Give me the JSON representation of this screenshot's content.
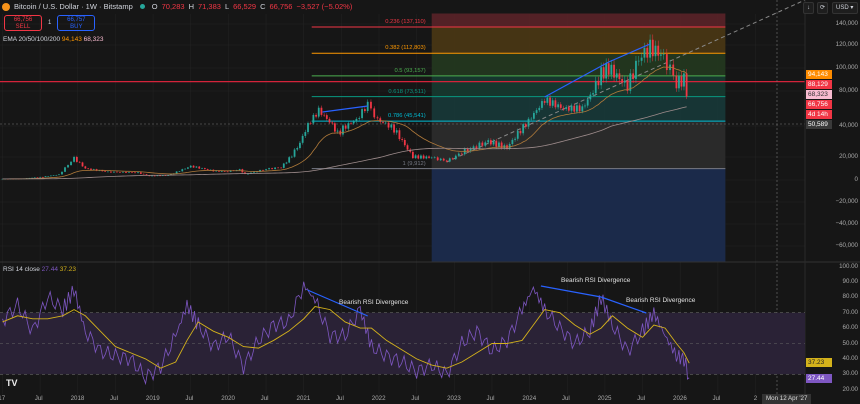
{
  "header": {
    "symbol": "Bitcoin / U.S. Dollar · 1W · Bitstamp",
    "open_label": "O",
    "open": "70,283",
    "high_label": "H",
    "high": "71,383",
    "low_label": "L",
    "low": "66,529",
    "close_label": "C",
    "close": "66,756",
    "change": "−3,527 (−5.02%)"
  },
  "order": {
    "sell_price": "66,756",
    "sell_label": "SELL",
    "spread": "1",
    "buy_price": "66,757",
    "buy_label": "BUY"
  },
  "ema": {
    "label": "EMA 20/50/100/200",
    "v1": "94,143",
    "v2": "68,323"
  },
  "rsi": {
    "label": "RSI 14 close",
    "v1": "27.44",
    "v2": "37.23"
  },
  "toolbar": {
    "currency": "USD",
    "currency_menu": "▾",
    "arrow": "↓",
    "refresh": "⟳"
  },
  "price_tags": [
    {
      "text": "94,143",
      "color": "#ff8c00",
      "value": 94143
    },
    {
      "text": "88,129",
      "color": "#f23645",
      "value": 88129
    },
    {
      "text": "68,323",
      "color": "#f8bbd0",
      "value": 68323
    },
    {
      "text": "66,756",
      "color": "#f23645",
      "value": 66756
    },
    {
      "text": "4d 14h",
      "color": "#f23645",
      "value": null
    },
    {
      "text": "50,589",
      "color": "#3a3a3a",
      "value": 50589
    }
  ],
  "crosshair": {
    "date": "Mon 12 Apr '27",
    "price": "50,589"
  },
  "annotations": [
    "Bearish RSI Divergence",
    "Bearish RSI Divergence",
    "Bearish RSI Divergence"
  ],
  "colors": {
    "up": "#26a69a",
    "down": "#f23645",
    "rsi": "#7e57c2",
    "rsi_ma": "#d4b21b",
    "ema_fast": "#b07a3a",
    "ema_slow": "#9e8c8c",
    "divergence": "#2962ff"
  },
  "chart_data": [
    {
      "type": "candlestick",
      "title": "Bitcoin / U.S. Dollar · 1W · Bitstamp",
      "y_ticks": [
        "140,000",
        "120,000",
        "100,000",
        "80,000",
        "40,000",
        "20,000",
        "0",
        "−20,000",
        "−40,000",
        "−60,000"
      ],
      "y_tick_values": [
        140000,
        120000,
        100000,
        80000,
        40000,
        20000,
        0,
        -20000,
        -40000,
        -60000
      ],
      "x_ticks": [
        "'17",
        "Jul",
        "2018",
        "Jul",
        "2019",
        "Jul",
        "2020",
        "Jul",
        "2021",
        "Jul",
        "2022",
        "Jul",
        "2023",
        "Jul",
        "2024",
        "Jul",
        "2025",
        "Jul",
        "2026",
        "Jul",
        "2"
      ],
      "x_tick_years": [
        2017,
        2017.5,
        2018,
        2018.5,
        2019,
        2019.5,
        2020,
        2020.5,
        2021,
        2021.5,
        2022,
        2022.5,
        2023,
        2023.5,
        2024,
        2024.5,
        2025,
        2025.5,
        2026,
        2026.5,
        2027
      ],
      "dates": [
        2017.0,
        2017.25,
        2017.5,
        2017.75,
        2017.95,
        2018.1,
        2018.4,
        2018.8,
        2018.95,
        2019.2,
        2019.5,
        2019.8,
        2019.95,
        2020.15,
        2020.22,
        2020.5,
        2020.7,
        2020.95,
        2021.2,
        2021.45,
        2021.7,
        2021.85,
        2021.98,
        2022.2,
        2022.45,
        2022.7,
        2022.9,
        2023.1,
        2023.45,
        2023.7,
        2023.95,
        2024.2,
        2024.45,
        2024.7,
        2024.95,
        2025.05,
        2025.3,
        2025.45,
        2025.6,
        2025.78,
        2025.95,
        2026.05,
        2026.12
      ],
      "close": [
        1000,
        1200,
        2500,
        4700,
        19000,
        10000,
        7000,
        6300,
        3500,
        4000,
        12000,
        8000,
        7200,
        9000,
        5000,
        9500,
        11000,
        29000,
        58000,
        35000,
        47000,
        65000,
        47000,
        38000,
        20000,
        19500,
        16500,
        23000,
        30000,
        26000,
        42000,
        70000,
        60000,
        60000,
        95000,
        100000,
        84000,
        108000,
        118000,
        110000,
        87000,
        90000,
        66756
      ],
      "fib_levels": [
        {
          "ratio": "0.236",
          "price": "137,110",
          "value": 137110,
          "color": "#f23645"
        },
        {
          "ratio": "0.382",
          "price": "112,803",
          "value": 112803,
          "color": "#ff9800"
        },
        {
          "ratio": "0.5",
          "price": "93,157",
          "value": 93157,
          "color": "#4caf50"
        },
        {
          "ratio": "0.618",
          "price": "73,511",
          "value": 73511,
          "color": "#089981"
        },
        {
          "ratio": "0.786",
          "price": "45,541",
          "value": 45541,
          "color": "#00bcd4"
        },
        {
          "ratio": "1",
          "price": "9,912",
          "value": 9912,
          "color": "#787b86"
        }
      ],
      "horizontal_line": 88129
    },
    {
      "type": "line",
      "title": "RSI 14 close",
      "y_ticks": [
        "100.00",
        "90.00",
        "80.00",
        "70.00",
        "60.00",
        "50.00",
        "40.00",
        "30.00",
        "20.00"
      ],
      "ylim": [
        20,
        100
      ],
      "bands": [
        30,
        50,
        70
      ],
      "dates": [
        2017.0,
        2017.2,
        2017.4,
        2017.6,
        2017.8,
        2017.95,
        2018.1,
        2018.3,
        2018.5,
        2018.7,
        2018.9,
        2019.1,
        2019.3,
        2019.45,
        2019.6,
        2019.8,
        2020.0,
        2020.2,
        2020.4,
        2020.6,
        2020.8,
        2021.0,
        2021.15,
        2021.35,
        2021.55,
        2021.75,
        2021.9,
        2022.1,
        2022.3,
        2022.5,
        2022.7,
        2022.9,
        2023.1,
        2023.3,
        2023.5,
        2023.7,
        2023.9,
        2024.05,
        2024.2,
        2024.4,
        2024.6,
        2024.8,
        2024.95,
        2025.1,
        2025.3,
        2025.5,
        2025.65,
        2025.8,
        2025.95,
        2026.05,
        2026.12
      ],
      "rsi": [
        65,
        75,
        58,
        80,
        72,
        85,
        58,
        45,
        42,
        40,
        28,
        35,
        55,
        75,
        62,
        48,
        55,
        35,
        52,
        62,
        64,
        88,
        78,
        55,
        55,
        72,
        48,
        42,
        38,
        32,
        36,
        30,
        50,
        58,
        45,
        52,
        72,
        86,
        72,
        60,
        50,
        58,
        80,
        62,
        45,
        58,
        70,
        55,
        42,
        40,
        27.44
      ],
      "ma": [
        64,
        68,
        66,
        66,
        68,
        72,
        68,
        58,
        48,
        44,
        40,
        34,
        38,
        52,
        64,
        58,
        54,
        48,
        47,
        52,
        58,
        66,
        74,
        72,
        64,
        60,
        60,
        52,
        46,
        40,
        36,
        34,
        38,
        44,
        50,
        50,
        52,
        62,
        72,
        70,
        62,
        56,
        60,
        68,
        60,
        54,
        62,
        60,
        50,
        44,
        37.23
      ]
    }
  ]
}
